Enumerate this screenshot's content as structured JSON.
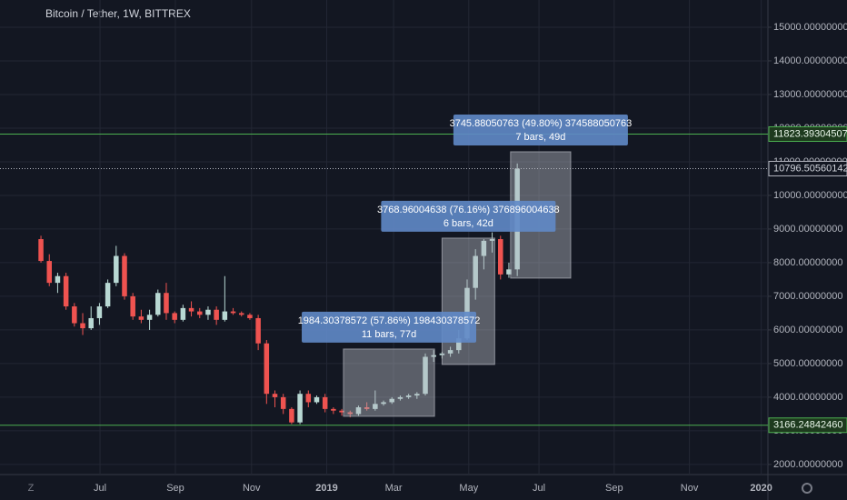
{
  "chart_data": {
    "type": "candlestick",
    "title": "Bitcoin / Tether, 1W, BITTREX",
    "open": [
      8700,
      8050,
      7400,
      7600,
      6700,
      6200,
      6050,
      6350,
      6700,
      7400,
      8200,
      7000,
      6400,
      6300,
      6450,
      7100,
      6500,
      6300,
      6650,
      6550,
      6450,
      6600,
      6300,
      6550,
      6500,
      6450,
      6350,
      5600,
      4100,
      4000,
      3650,
      3250,
      4100,
      3850,
      4000,
      3650,
      3600,
      3550,
      3500,
      3700,
      3650,
      3800,
      3850,
      3950,
      4000,
      4050,
      4100,
      5200,
      5250,
      5300,
      5400,
      5750,
      7250,
      8200,
      8650,
      8700,
      7650,
      7800
    ],
    "high": [
      8800,
      8250,
      7700,
      7700,
      6800,
      6500,
      6700,
      6800,
      7500,
      8500,
      8280,
      7100,
      6600,
      6600,
      7200,
      7400,
      6550,
      6750,
      6850,
      6650,
      6700,
      6700,
      7600,
      6650,
      6550,
      6500,
      6450,
      5700,
      4200,
      4100,
      3700,
      4200,
      4200,
      4050,
      4100,
      3700,
      3650,
      3600,
      3750,
      3850,
      4200,
      3900,
      4000,
      4050,
      4100,
      4150,
      5300,
      5400,
      5350,
      5500,
      6000,
      7500,
      8400,
      8700,
      8900,
      8800,
      8000,
      10950
    ],
    "low": [
      8000,
      7300,
      7100,
      6600,
      6100,
      5850,
      6000,
      6150,
      6650,
      7300,
      6900,
      6300,
      6200,
      6000,
      6400,
      6300,
      6200,
      6250,
      6400,
      6350,
      6300,
      6150,
      6250,
      6450,
      6400,
      6300,
      5400,
      3800,
      3700,
      3500,
      3200,
      3200,
      3700,
      3800,
      3550,
      3500,
      3450,
      3400,
      3450,
      3600,
      3600,
      3750,
      3800,
      3900,
      3950,
      3950,
      4050,
      5050,
      5150,
      5200,
      5300,
      5700,
      6900,
      7800,
      8300,
      7500,
      7550,
      7600
    ],
    "close": [
      8050,
      7400,
      7600,
      6700,
      6200,
      6050,
      6350,
      6700,
      7400,
      8200,
      7000,
      6400,
      6300,
      6450,
      7100,
      6500,
      6300,
      6650,
      6550,
      6450,
      6600,
      6300,
      6550,
      6500,
      6450,
      6350,
      5600,
      4100,
      4000,
      3650,
      3250,
      4100,
      3850,
      4000,
      3650,
      3600,
      3550,
      3500,
      3700,
      3650,
      3800,
      3850,
      3950,
      4000,
      4050,
      4100,
      5200,
      5250,
      5300,
      5400,
      5750,
      7250,
      8200,
      8650,
      8700,
      7650,
      7800,
      10796
    ],
    "up_color": "#b8d8d3",
    "down_color": "#ef5350",
    "xlim": [
      -4.9,
      87
    ],
    "ylim": [
      1700,
      15810
    ],
    "xticks": [
      {
        "value": 7.07,
        "label": "Jul"
      },
      {
        "value": 16.09,
        "label": "Sep"
      },
      {
        "value": 25.2,
        "label": "Nov"
      },
      {
        "value": 34.2,
        "label": "2019"
      },
      {
        "value": 42.2,
        "label": "Mar"
      },
      {
        "value": 51.2,
        "label": "May"
      },
      {
        "value": 59.6,
        "label": "Jul"
      },
      {
        "value": 68.6,
        "label": "Sep"
      },
      {
        "value": 77.6,
        "label": "Nov"
      },
      {
        "value": 86.2,
        "label": "2020"
      }
    ],
    "yticks": [
      {
        "value": 2000,
        "label": "2000.00000000"
      },
      {
        "value": 3000,
        "label": "3000.00000000"
      },
      {
        "value": 4000,
        "label": "4000.00000000"
      },
      {
        "value": 5000,
        "label": "5000.00000000"
      },
      {
        "value": 6000,
        "label": "6000.00000000"
      },
      {
        "value": 7000,
        "label": "7000.00000000"
      },
      {
        "value": 8000,
        "label": "8000.00000000"
      },
      {
        "value": 9000,
        "label": "9000.00000000"
      },
      {
        "value": 10000,
        "label": "10000.00000000"
      },
      {
        "value": 11000,
        "label": "11000.00000000"
      },
      {
        "value": 12000,
        "label": "12000.00000000"
      },
      {
        "value": 13000,
        "label": "13000.00000000"
      },
      {
        "value": 14000,
        "label": "14000.00000000"
      },
      {
        "value": 15000,
        "label": "15000.00000000"
      }
    ],
    "grid": true,
    "levels": [
      {
        "value": 11823.39304507,
        "label": "11823.39304507",
        "color": "#4caf50",
        "style": "solid"
      },
      {
        "value": 3166.2484246,
        "label": "3166.24842460",
        "color": "#4caf50",
        "style": "solid"
      },
      {
        "value": 10796.50560142,
        "label": "10796.50560142",
        "color": "#b2b5be",
        "style": "dotted"
      }
    ],
    "measures": [
      {
        "x_from": 36.2,
        "x_to": 47.1,
        "price_from": 3432,
        "price_to": 5432,
        "text": "1984.30378572 (57.86%) 198430378572",
        "detail": "11 bars, 77d"
      },
      {
        "x_from": 48.0,
        "x_to": 54.3,
        "price_from": 4973,
        "price_to": 8730,
        "text": "3768.96004638 (76.16%) 376896004638",
        "detail": "6 bars, 42d"
      },
      {
        "x_from": 56.2,
        "x_to": 63.4,
        "price_from": 7541,
        "price_to": 11297,
        "text": "3745.88050763 (49.80%) 374588050763",
        "detail": "7 bars, 49d"
      }
    ]
  }
}
